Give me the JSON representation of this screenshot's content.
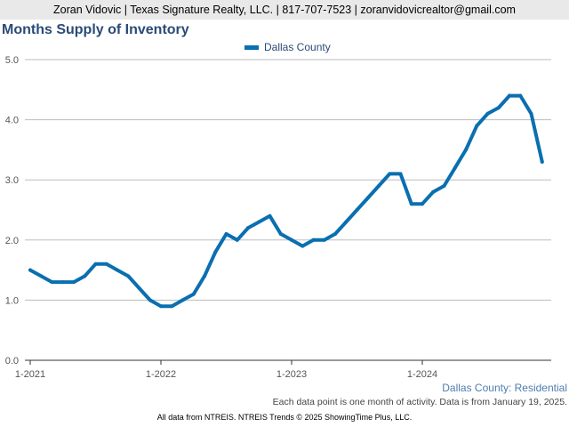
{
  "header": {
    "contact": "Zoran Vidovic | Texas Signature Realty, LLC. | 817-707-7523 | zoranvidovicrealtor@gmail.com"
  },
  "footer": {
    "series_label": "Dallas County: Residential",
    "note": "Each data point is one month of activity. Data is from January 19, 2025.",
    "credit": "All data from NTREIS. NTREIS Trends © 2025 ShowingTime Plus, LLC."
  },
  "colors": {
    "series": "#0a6fb0",
    "grid": "#bdbdbd"
  },
  "chart_data": {
    "type": "line",
    "title": "Months Supply of Inventory",
    "ylim": [
      0,
      5
    ],
    "y_ticks": [
      "0.0",
      "1.0",
      "2.0",
      "3.0",
      "4.0",
      "5.0"
    ],
    "x_ticks": [
      {
        "label": "1-2021",
        "index": 0
      },
      {
        "label": "1-2022",
        "index": 12
      },
      {
        "label": "1-2023",
        "index": 24
      },
      {
        "label": "1-2024",
        "index": 36
      }
    ],
    "legend_position": "top-center",
    "grid": true,
    "x": [
      "1-2021",
      "2-2021",
      "3-2021",
      "4-2021",
      "5-2021",
      "6-2021",
      "7-2021",
      "8-2021",
      "9-2021",
      "10-2021",
      "11-2021",
      "12-2021",
      "1-2022",
      "2-2022",
      "3-2022",
      "4-2022",
      "5-2022",
      "6-2022",
      "7-2022",
      "8-2022",
      "9-2022",
      "10-2022",
      "11-2022",
      "12-2022",
      "1-2023",
      "2-2023",
      "3-2023",
      "4-2023",
      "5-2023",
      "6-2023",
      "7-2023",
      "8-2023",
      "9-2023",
      "10-2023",
      "11-2023",
      "12-2023",
      "1-2024",
      "2-2024",
      "3-2024",
      "4-2024",
      "5-2024",
      "6-2024",
      "7-2024",
      "8-2024",
      "9-2024",
      "10-2024",
      "11-2024",
      "12-2024"
    ],
    "series": [
      {
        "name": "Dallas County",
        "values": [
          1.5,
          1.4,
          1.3,
          1.3,
          1.3,
          1.4,
          1.6,
          1.6,
          1.5,
          1.4,
          1.2,
          1.0,
          0.9,
          0.9,
          1.0,
          1.1,
          1.4,
          1.8,
          2.1,
          2.0,
          2.2,
          2.3,
          2.4,
          2.1,
          2.0,
          1.9,
          2.0,
          2.0,
          2.1,
          2.3,
          2.5,
          2.7,
          2.9,
          3.1,
          3.1,
          2.6,
          2.6,
          2.8,
          2.9,
          3.2,
          3.5,
          3.9,
          4.1,
          4.2,
          4.4,
          4.4,
          4.1,
          3.3
        ]
      }
    ]
  }
}
